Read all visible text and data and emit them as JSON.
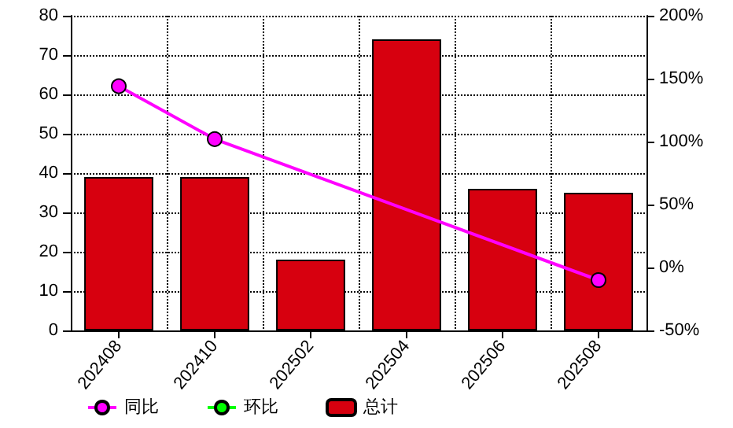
{
  "chart_data": {
    "type": "bar",
    "categories": [
      "202408",
      "202410",
      "202502",
      "202504",
      "202506",
      "202508"
    ],
    "series": [
      {
        "name": "同比",
        "type": "line",
        "axis": "y2",
        "color": "#ff00ff",
        "values": [
          144,
          102,
          null,
          null,
          null,
          -10
        ]
      },
      {
        "name": "环比",
        "type": "line",
        "axis": "y2",
        "color": "#00ff00",
        "values": [
          null,
          null,
          null,
          null,
          null,
          null
        ]
      },
      {
        "name": "总计",
        "color": "#d7000f",
        "values": [
          39,
          39,
          18,
          74,
          36,
          35
        ]
      }
    ],
    "ylim": [
      0,
      80
    ],
    "yticks": [
      0,
      10,
      20,
      30,
      40,
      50,
      60,
      70,
      80
    ],
    "y2lim": [
      -50,
      200
    ],
    "y2ticks": [
      {
        "value": -50,
        "label": "-50%"
      },
      {
        "value": 0,
        "label": "0%"
      },
      {
        "value": 50,
        "label": "50%"
      },
      {
        "value": 100,
        "label": "100%"
      },
      {
        "value": 150,
        "label": "150%"
      },
      {
        "value": 200,
        "label": "200%"
      }
    ],
    "grid": true,
    "legend": "bottom left",
    "marker": "circle"
  }
}
